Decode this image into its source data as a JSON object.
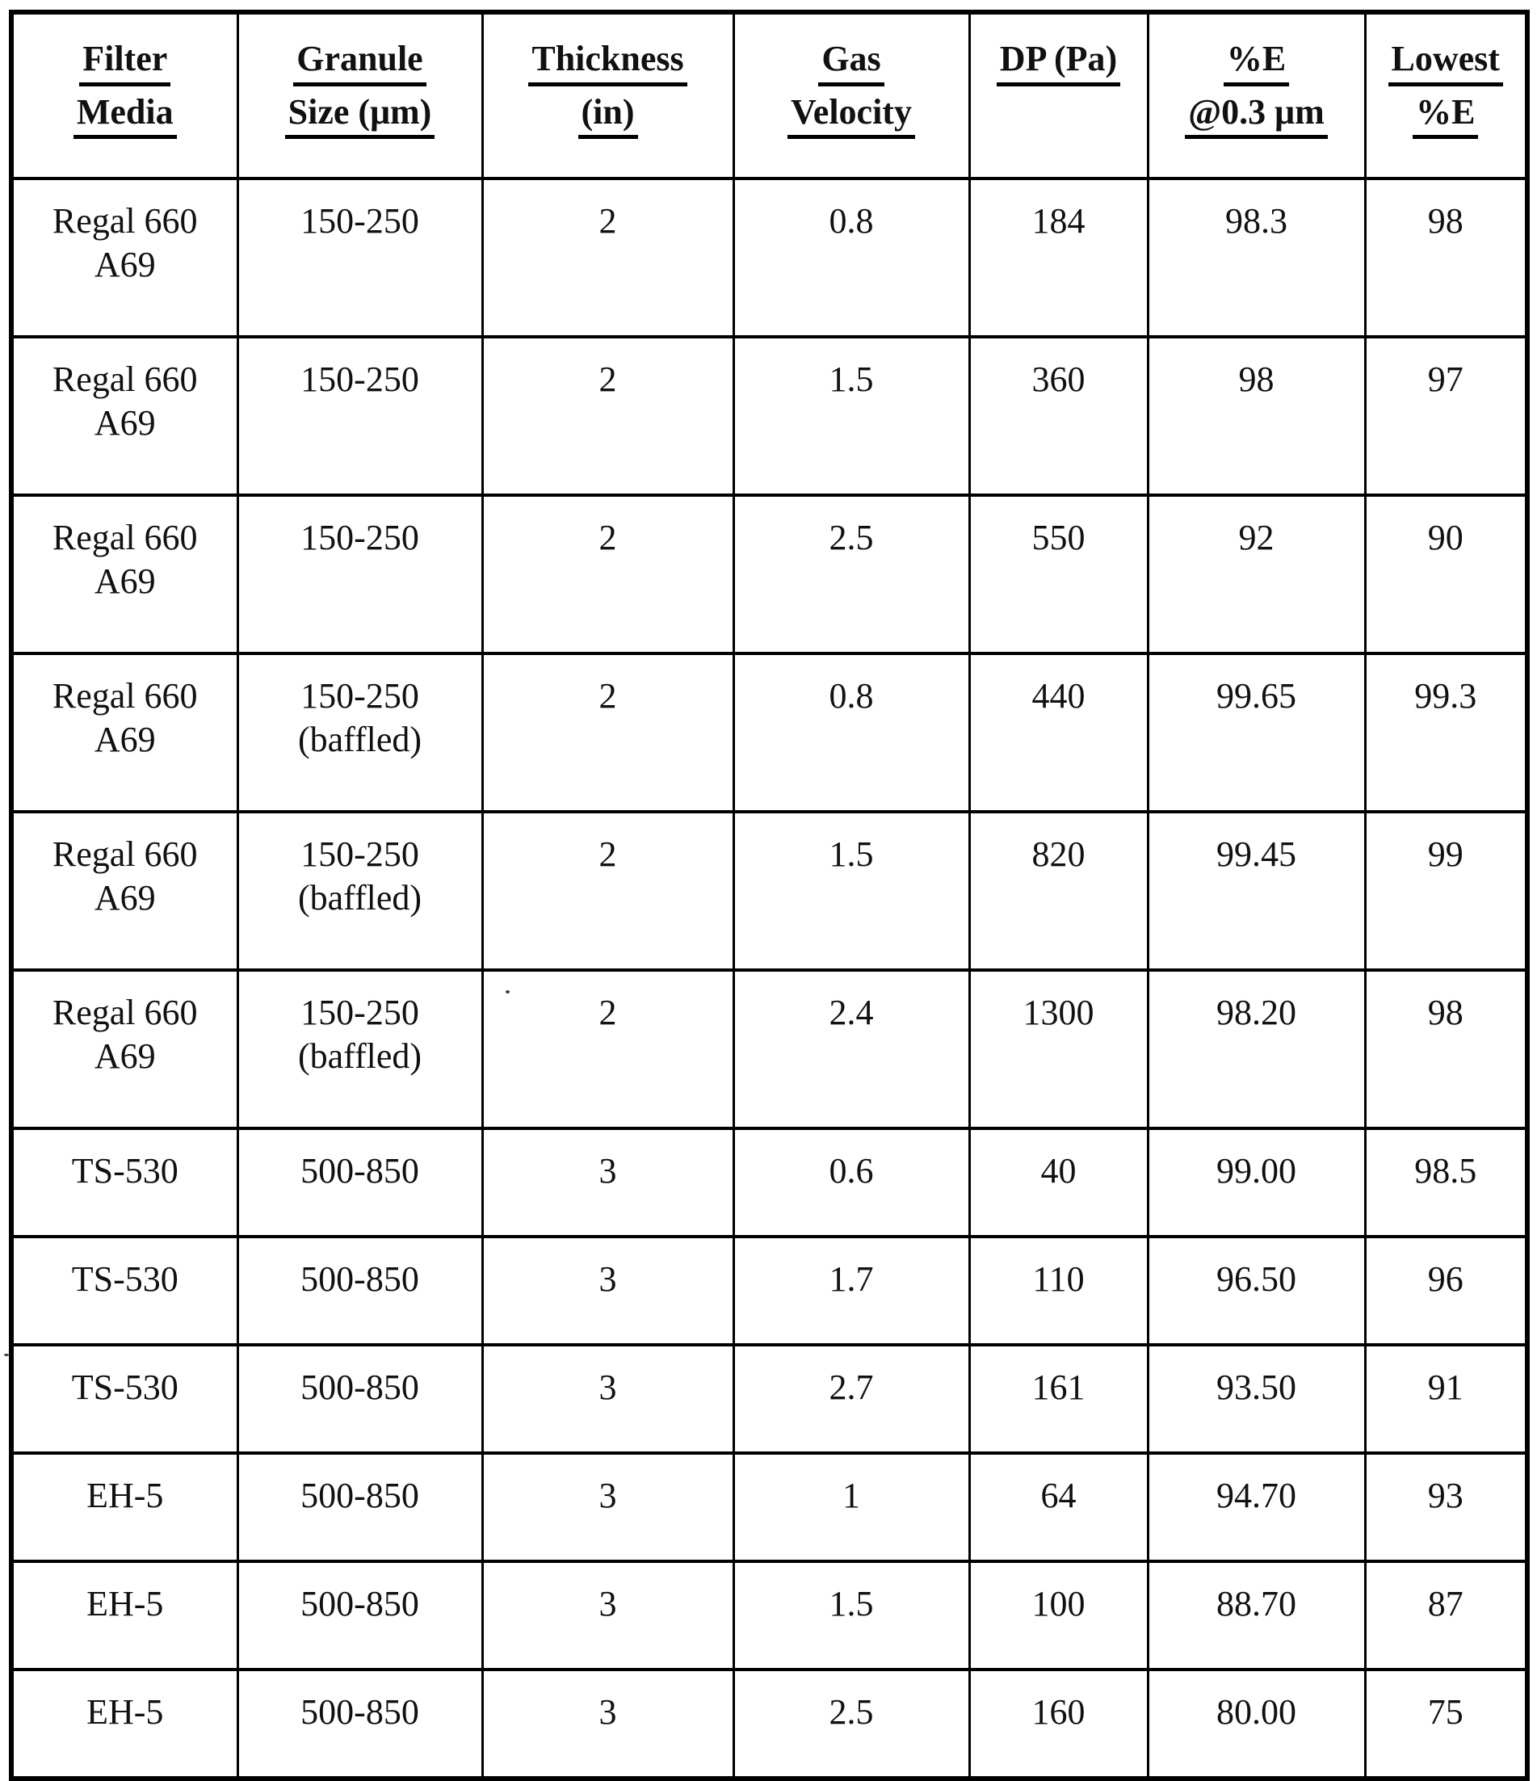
{
  "colors": {
    "border": "#000000",
    "text": "#111111",
    "background": "#ffffff"
  },
  "table": {
    "headers": [
      {
        "id": "filter_media",
        "lines": [
          "Filter",
          "Media"
        ]
      },
      {
        "id": "granule_size",
        "lines": [
          "Granule",
          "Size (μm)"
        ]
      },
      {
        "id": "thickness",
        "lines": [
          "Thickness",
          "(in)"
        ]
      },
      {
        "id": "gas_velocity",
        "lines": [
          "Gas",
          "Velocity"
        ]
      },
      {
        "id": "dp",
        "lines": [
          "DP (Pa)"
        ]
      },
      {
        "id": "e_at_03",
        "lines": [
          "%E",
          "@0.3 μm"
        ]
      },
      {
        "id": "lowest_e",
        "lines": [
          "Lowest",
          "%E"
        ]
      }
    ],
    "rows": [
      {
        "filter_media": [
          "Regal 660",
          "A69"
        ],
        "granule_size": [
          "150-250"
        ],
        "thickness": "2",
        "gas_velocity": "0.8",
        "dp": "184",
        "e_at_03": "98.3",
        "lowest_e": "98"
      },
      {
        "filter_media": [
          "Regal 660",
          "A69"
        ],
        "granule_size": [
          "150-250"
        ],
        "thickness": "2",
        "gas_velocity": "1.5",
        "dp": "360",
        "e_at_03": "98",
        "lowest_e": "97"
      },
      {
        "filter_media": [
          "Regal 660",
          "A69"
        ],
        "granule_size": [
          "150-250"
        ],
        "thickness": "2",
        "gas_velocity": "2.5",
        "dp": "550",
        "e_at_03": "92",
        "lowest_e": "90"
      },
      {
        "filter_media": [
          "Regal 660",
          "A69"
        ],
        "granule_size": [
          "150-250",
          "(baffled)"
        ],
        "thickness": "2",
        "gas_velocity": "0.8",
        "dp": "440",
        "e_at_03": "99.65",
        "lowest_e": "99.3"
      },
      {
        "filter_media": [
          "Regal 660",
          "A69"
        ],
        "granule_size": [
          "150-250",
          "(baffled)"
        ],
        "thickness": "2",
        "gas_velocity": "1.5",
        "dp": "820",
        "e_at_03": "99.45",
        "lowest_e": "99"
      },
      {
        "filter_media": [
          "Regal 660",
          "A69"
        ],
        "granule_size": [
          "150-250",
          "(baffled)"
        ],
        "thickness": "2",
        "gas_velocity": "2.4",
        "dp": "1300",
        "e_at_03": "98.20",
        "lowest_e": "98"
      },
      {
        "filter_media": [
          "TS-530"
        ],
        "granule_size": [
          "500-850"
        ],
        "thickness": "3",
        "gas_velocity": "0.6",
        "dp": "40",
        "e_at_03": "99.00",
        "lowest_e": "98.5"
      },
      {
        "filter_media": [
          "TS-530"
        ],
        "granule_size": [
          "500-850"
        ],
        "thickness": "3",
        "gas_velocity": "1.7",
        "dp": "110",
        "e_at_03": "96.50",
        "lowest_e": "96"
      },
      {
        "filter_media": [
          "TS-530"
        ],
        "granule_size": [
          "500-850"
        ],
        "thickness": "3",
        "gas_velocity": "2.7",
        "dp": "161",
        "e_at_03": "93.50",
        "lowest_e": "91"
      },
      {
        "filter_media": [
          "EH-5"
        ],
        "granule_size": [
          "500-850"
        ],
        "thickness": "3",
        "gas_velocity": "1",
        "dp": "64",
        "e_at_03": "94.70",
        "lowest_e": "93"
      },
      {
        "filter_media": [
          "EH-5"
        ],
        "granule_size": [
          "500-850"
        ],
        "thickness": "3",
        "gas_velocity": "1.5",
        "dp": "100",
        "e_at_03": "88.70",
        "lowest_e": "87"
      },
      {
        "filter_media": [
          "EH-5"
        ],
        "granule_size": [
          "500-850"
        ],
        "thickness": "3",
        "gas_velocity": "2.5",
        "dp": "160",
        "e_at_03": "80.00",
        "lowest_e": "75"
      }
    ]
  }
}
